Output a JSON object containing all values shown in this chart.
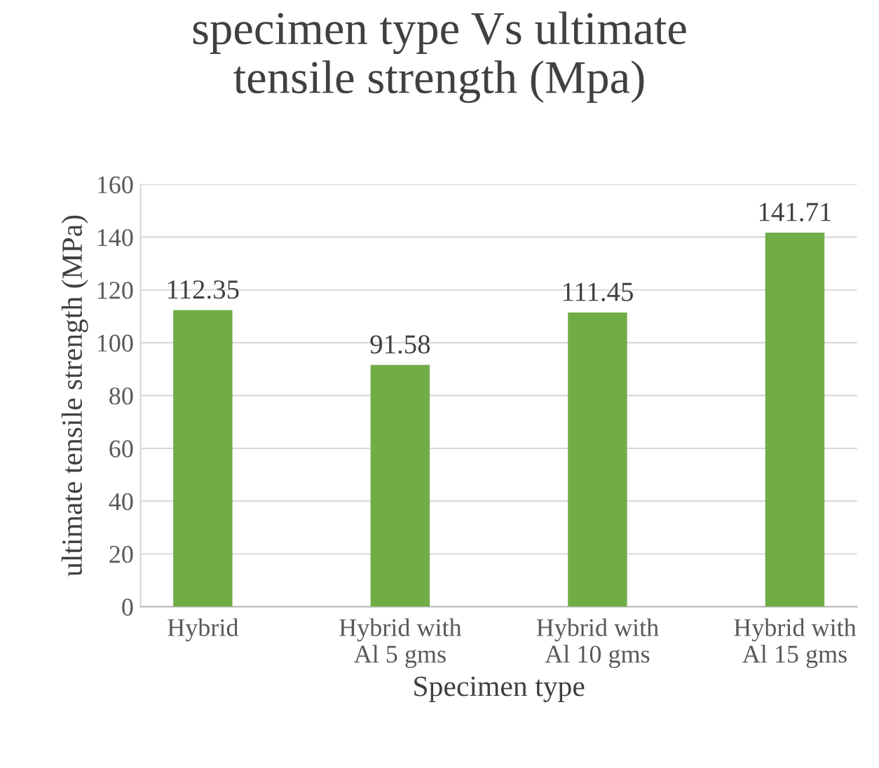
{
  "chart_data": {
    "type": "bar",
    "title": "specimen type Vs ultimate\ntensile strength (Mpa)",
    "xlabel": "Specimen type",
    "ylabel": "ultimate tensile strength (MPa)",
    "categories": [
      "Hybrid",
      "Hybrid with\nAl 5 gms",
      "Hybrid with\nAl 10 gms",
      "Hybrid with\nAl 15 gms"
    ],
    "values": [
      112.35,
      91.58,
      111.45,
      141.71
    ],
    "color": "#70ad47",
    "ylim": [
      0,
      160
    ],
    "yticks": [
      0,
      20,
      40,
      60,
      80,
      100,
      120,
      140,
      160
    ],
    "grid": "y",
    "data_labels": true
  }
}
